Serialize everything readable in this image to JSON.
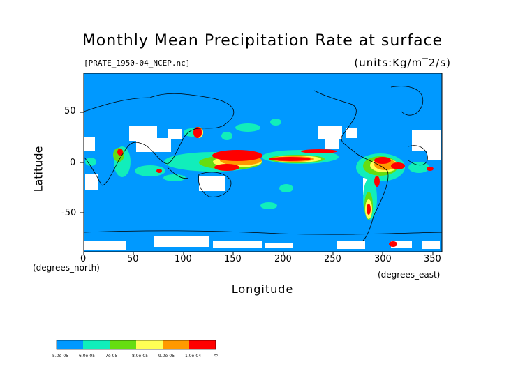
{
  "title": "Monthly Mean Precipitation Rate at surface",
  "file_label": "[PRATE_1950-04_NCEP.nc]",
  "units_label": "(units:Kg/m‾2/s)",
  "axes": {
    "ylabel": "Latitude",
    "xlabel": "Longitude",
    "y_unit": "(degrees_north)",
    "x_unit": "(degrees_east)",
    "x_ticks": [
      "0",
      "50",
      "100",
      "150",
      "200",
      "250",
      "300",
      "350"
    ],
    "y_ticks": [
      "50",
      "0",
      "-50"
    ]
  },
  "colors": {
    "ocean": "#0099ff",
    "level1": "#11eebb",
    "level2": "#66dd11",
    "level3": "#ffff55",
    "level4": "#ff9900",
    "level5": "#ff0000"
  },
  "colorbar": {
    "labels": [
      "5.0e-05",
      "6.0e-05",
      "7e-05",
      "8.0e-05",
      "9.0e-05",
      "1.0e-04",
      "∞"
    ],
    "colors": [
      "#0099ff",
      "#11eebb",
      "#66dd11",
      "#ffff55",
      "#ff9900",
      "#ff0000"
    ]
  }
}
